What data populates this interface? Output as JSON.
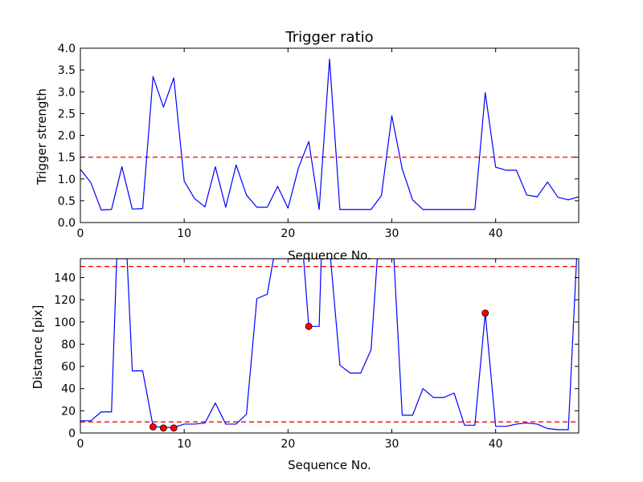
{
  "chart_data": [
    {
      "type": "line",
      "title": "Trigger ratio",
      "xlabel": "Sequence No.",
      "ylabel": "Trigger strength",
      "xlim": [
        0,
        48
      ],
      "ylim": [
        0,
        4.0
      ],
      "xticks": [
        0,
        10,
        20,
        30,
        40
      ],
      "yticks": [
        0.0,
        0.5,
        1.0,
        1.5,
        2.0,
        2.5,
        3.0,
        3.5,
        4.0
      ],
      "ytick_labels": [
        "0.0",
        "0.5",
        "1.0",
        "1.5",
        "2.0",
        "2.5",
        "3.0",
        "3.5",
        "4.0"
      ],
      "grid": false,
      "line_color": "#0000ff",
      "threshold_color": "#ff0000",
      "thresholds": [
        1.5
      ],
      "x": [
        0,
        1,
        2,
        3,
        4,
        5,
        6,
        7,
        8,
        9,
        10,
        11,
        12,
        13,
        14,
        15,
        16,
        17,
        18,
        19,
        20,
        21,
        22,
        23,
        24,
        25,
        26,
        27,
        28,
        29,
        30,
        31,
        32,
        33,
        34,
        35,
        36,
        37,
        38,
        39,
        40,
        41,
        42,
        43,
        44,
        45,
        46,
        47,
        48
      ],
      "values": [
        1.22,
        0.92,
        0.29,
        0.3,
        1.28,
        0.31,
        0.32,
        3.35,
        2.65,
        3.32,
        0.95,
        0.55,
        0.36,
        1.28,
        0.35,
        1.32,
        0.63,
        0.35,
        0.35,
        0.83,
        0.33,
        1.25,
        1.86,
        0.3,
        3.75,
        0.3,
        0.3,
        0.3,
        0.3,
        0.62,
        2.45,
        1.23,
        0.52,
        0.3,
        0.3,
        0.3,
        0.3,
        0.3,
        0.3,
        2.98,
        1.27,
        1.2,
        1.2,
        0.63,
        0.59,
        0.93,
        0.58,
        0.52,
        0.59
      ]
    },
    {
      "type": "line",
      "title": "",
      "xlabel": "Sequence No.",
      "ylabel": "Distance [pix]",
      "xlim": [
        0,
        48
      ],
      "ylim": [
        0,
        157
      ],
      "xticks": [
        0,
        10,
        20,
        30,
        40
      ],
      "yticks": [
        0,
        20,
        40,
        60,
        80,
        100,
        120,
        140
      ],
      "grid": false,
      "line_color": "#0000ff",
      "threshold_color": "#ff0000",
      "marker_color": "#ff0000",
      "thresholds": [
        150,
        10
      ],
      "x": [
        0,
        1,
        2,
        3,
        3.5,
        4.5,
        5,
        6,
        7,
        8,
        9,
        10,
        11,
        12,
        13,
        14,
        15,
        16,
        17,
        18,
        18.6,
        21.5,
        22,
        23,
        23.2,
        24.1,
        25,
        26,
        27,
        28,
        28.6,
        30.2,
        31,
        32,
        33,
        34,
        35,
        36,
        37,
        38,
        39,
        40,
        41,
        42,
        43,
        44,
        45,
        46,
        47,
        47.8
      ],
      "values": [
        11,
        11,
        19,
        19,
        157,
        157,
        56,
        56,
        6,
        5,
        5,
        8,
        8,
        9,
        27,
        8,
        8,
        17,
        121,
        125,
        157,
        157,
        96,
        96,
        157,
        157,
        61,
        54,
        54,
        75,
        157,
        157,
        16,
        16,
        40,
        32,
        32,
        36,
        7,
        7,
        108,
        6,
        6,
        8,
        9,
        8,
        4,
        3,
        3,
        157
      ],
      "markers": [
        {
          "x": 7,
          "y": 5.5
        },
        {
          "x": 8,
          "y": 4.5
        },
        {
          "x": 9,
          "y": 4.5
        },
        {
          "x": 22,
          "y": 96
        },
        {
          "x": 39,
          "y": 108
        }
      ]
    }
  ]
}
